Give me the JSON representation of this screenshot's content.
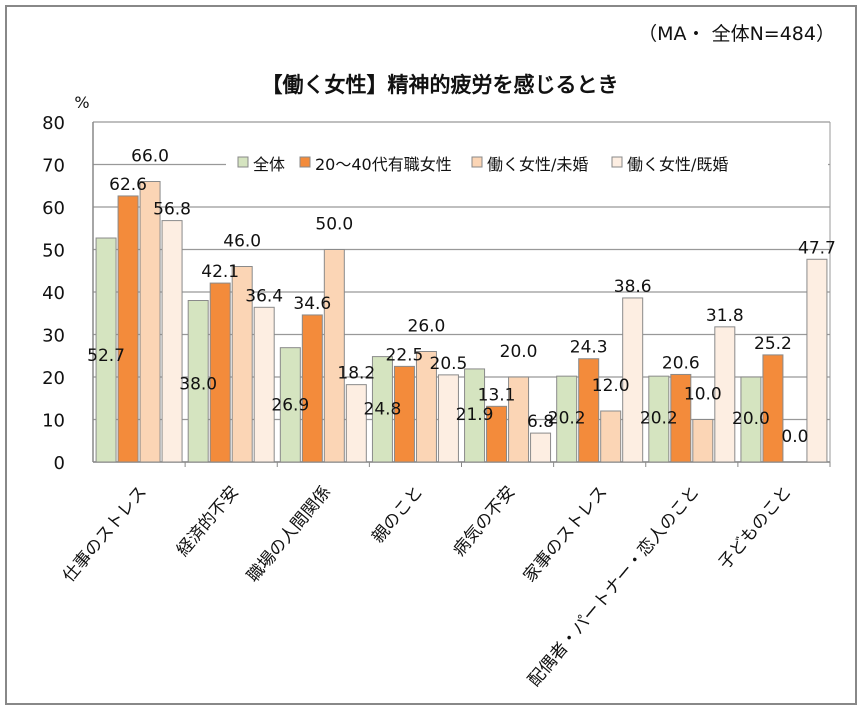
{
  "chart_data": {
    "type": "bar",
    "title": "【働く女性】精神的疲労を感じるとき",
    "subtitle": "（MA・ 全体N=484）",
    "ylabel": "%",
    "ylim": [
      0,
      80
    ],
    "yticks": [
      0,
      10,
      20,
      30,
      40,
      50,
      60,
      70,
      80
    ],
    "grid": true,
    "legend_position": "top-right",
    "categories": [
      "仕事のストレス",
      "経済的不安",
      "職場の人間関係",
      "親のこと",
      "病気の不安",
      "家事のストレス",
      "配偶者・パートナー・恋人のこと",
      "子どものこと"
    ],
    "series": [
      {
        "name": "全体",
        "color": "#d5e4c0",
        "values": [
          52.7,
          38.0,
          26.9,
          24.8,
          21.9,
          20.2,
          20.2,
          20.0
        ]
      },
      {
        "name": "20～40代有職女性",
        "color": "#f38b3b",
        "values": [
          62.6,
          42.1,
          34.6,
          22.5,
          13.1,
          24.3,
          20.6,
          25.2
        ]
      },
      {
        "name": "働く女性/未婚",
        "color": "#fbd5b5",
        "values": [
          66.0,
          46.0,
          50.0,
          26.0,
          20.0,
          12.0,
          10.0,
          0.0
        ]
      },
      {
        "name": "働く女性/既婚",
        "color": "#fdeee2",
        "values": [
          56.8,
          36.4,
          18.2,
          20.5,
          6.8,
          38.6,
          31.8,
          47.7
        ]
      }
    ]
  }
}
